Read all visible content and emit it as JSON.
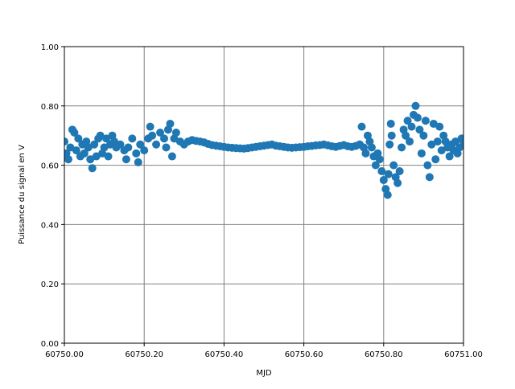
{
  "chart_data": {
    "type": "scatter",
    "x_label": "MJD",
    "y_label": "Puissance du signal en V",
    "color": "#1f77b4",
    "grid": true,
    "xlim": [
      60750.0,
      60751.0
    ],
    "xticks": [
      {
        "value": 60750.0,
        "label": "60750.00"
      },
      {
        "value": 60750.2,
        "label": "60750.20"
      },
      {
        "value": 60750.4,
        "label": "60750.40"
      },
      {
        "value": 60750.6,
        "label": "60750.60"
      },
      {
        "value": 60750.8,
        "label": "60750.80"
      },
      {
        "value": 60751.0,
        "label": "60751.00"
      }
    ],
    "ylim": [
      0,
      1
    ],
    "yticks": [
      {
        "value": 0,
        "label": "0.00"
      },
      {
        "value": 0.2,
        "label": "0.20"
      },
      {
        "value": 0.4,
        "label": "0.40"
      },
      {
        "value": 0.6,
        "label": "0.60"
      },
      {
        "value": 0.8,
        "label": "0.80"
      },
      {
        "value": 1,
        "label": "1.00"
      }
    ],
    "x": [
      60750.0,
      60750.005,
      60750.01,
      60750.015,
      60750.02,
      60750.025,
      60750.03,
      60750.035,
      60750.04,
      60750.045,
      60750.05,
      60750.055,
      60750.06,
      60750.065,
      60750.07,
      60750.075,
      60750.08,
      60750.085,
      60750.09,
      60750.095,
      60750.1,
      60750.105,
      60750.11,
      60750.115,
      60750.12,
      60750.125,
      60750.13,
      60750.14,
      60750.15,
      60750.155,
      60750.16,
      60750.17,
      60750.18,
      60750.185,
      60750.19,
      60750.2,
      60750.21,
      60750.215,
      60750.22,
      60750.23,
      60750.24,
      60750.25,
      60750.255,
      60750.26,
      60750.265,
      60750.27,
      60750.275,
      60750.28,
      60750.29,
      60750.3,
      60750.31,
      60750.32,
      60750.33,
      60750.34,
      60750.35,
      60750.36,
      60750.37,
      60750.38,
      60750.39,
      60750.4,
      60750.41,
      60750.42,
      60750.43,
      60750.44,
      60750.45,
      60750.46,
      60750.47,
      60750.48,
      60750.49,
      60750.5,
      60750.51,
      60750.52,
      60750.53,
      60750.54,
      60750.55,
      60750.56,
      60750.57,
      60750.58,
      60750.59,
      60750.6,
      60750.61,
      60750.62,
      60750.63,
      60750.64,
      60750.65,
      60750.66,
      60750.67,
      60750.68,
      60750.69,
      60750.7,
      60750.71,
      60750.72,
      60750.73,
      60750.74,
      60750.745,
      60750.75,
      60750.755,
      60750.76,
      60750.765,
      60750.77,
      60750.775,
      60750.78,
      60750.785,
      60750.79,
      60750.795,
      60750.8,
      60750.805,
      60750.81,
      60750.812,
      60750.815,
      60750.818,
      60750.82,
      60750.825,
      60750.83,
      60750.835,
      60750.84,
      60750.845,
      60750.85,
      60750.855,
      60750.86,
      60750.865,
      60750.87,
      60750.875,
      60750.88,
      60750.885,
      60750.89,
      60750.895,
      60750.9,
      60750.905,
      60750.91,
      60750.915,
      60750.92,
      60750.925,
      60750.93,
      60750.935,
      60750.94,
      60750.945,
      60750.95,
      60750.955,
      60750.96,
      60750.965,
      60750.97,
      60750.975,
      60750.98,
      60750.985,
      60750.99,
      60750.995,
      60751.0
    ],
    "values": [
      0.68,
      0.64,
      0.62,
      0.66,
      0.72,
      0.71,
      0.65,
      0.69,
      0.63,
      0.67,
      0.64,
      0.68,
      0.66,
      0.62,
      0.59,
      0.67,
      0.63,
      0.69,
      0.7,
      0.64,
      0.66,
      0.69,
      0.63,
      0.67,
      0.7,
      0.68,
      0.66,
      0.67,
      0.65,
      0.62,
      0.66,
      0.69,
      0.64,
      0.61,
      0.67,
      0.65,
      0.69,
      0.73,
      0.7,
      0.67,
      0.71,
      0.69,
      0.66,
      0.72,
      0.74,
      0.63,
      0.69,
      0.71,
      0.68,
      0.67,
      0.68,
      0.685,
      0.682,
      0.68,
      0.677,
      0.672,
      0.668,
      0.666,
      0.664,
      0.662,
      0.66,
      0.659,
      0.658,
      0.657,
      0.656,
      0.658,
      0.66,
      0.662,
      0.664,
      0.666,
      0.668,
      0.67,
      0.666,
      0.664,
      0.662,
      0.66,
      0.659,
      0.66,
      0.661,
      0.662,
      0.664,
      0.665,
      0.667,
      0.668,
      0.67,
      0.667,
      0.664,
      0.662,
      0.665,
      0.668,
      0.664,
      0.662,
      0.665,
      0.67,
      0.73,
      0.66,
      0.64,
      0.7,
      0.68,
      0.66,
      0.63,
      0.6,
      0.64,
      0.62,
      0.58,
      0.55,
      0.52,
      0.5,
      0.57,
      0.67,
      0.74,
      0.7,
      0.6,
      0.56,
      0.54,
      0.58,
      0.66,
      0.72,
      0.7,
      0.75,
      0.68,
      0.73,
      0.77,
      0.8,
      0.76,
      0.72,
      0.64,
      0.7,
      0.75,
      0.6,
      0.56,
      0.67,
      0.74,
      0.62,
      0.68,
      0.73,
      0.65,
      0.7,
      0.68,
      0.66,
      0.63,
      0.67,
      0.65,
      0.68,
      0.64,
      0.66,
      0.69,
      0.68
    ]
  }
}
